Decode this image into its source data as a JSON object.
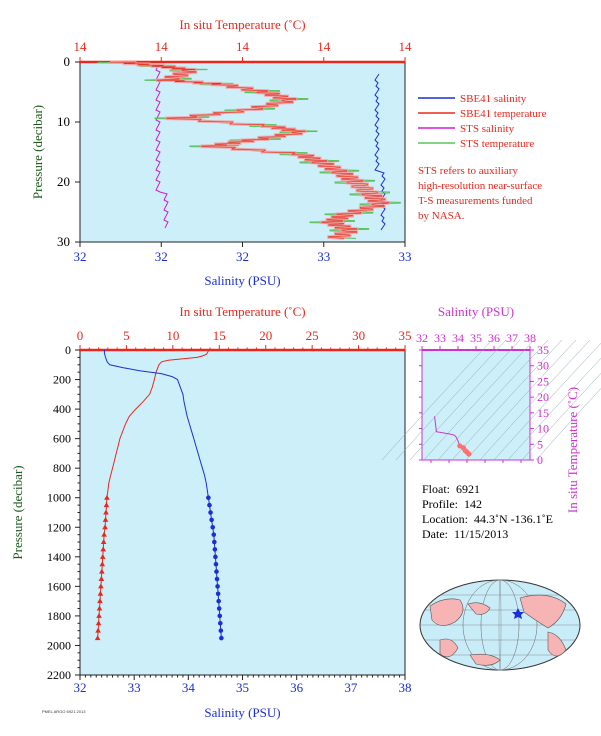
{
  "colors": {
    "plot_bg": "#cdeffa",
    "temperature": "#e8281e",
    "salinity": "#1a2fd6",
    "sts_salinity": "#d21ed2",
    "sts_temperature": "#5cc35c",
    "sbe_temp_band": "#f5a0a0",
    "ts_axis": "#cc33cc",
    "axis_label_green": "#1a5a1a"
  },
  "top_plot": {
    "title_top": "In situ Temperature (˚C)",
    "xlabel": "Salinity (PSU)",
    "ylabel": "Pressure (decibar)",
    "top_ticks": [
      "14",
      "14",
      "14",
      "14",
      "14"
    ],
    "bottom_ticks": [
      "32",
      "32",
      "32",
      "33",
      "33"
    ],
    "y_ticks": [
      "0",
      "10",
      "20",
      "30"
    ],
    "legend": [
      {
        "label": "SBE41 salinity",
        "color": "#1a2fd6"
      },
      {
        "label": "SBE41 temperature",
        "color": "#e8281e"
      },
      {
        "label": "STS salinity",
        "color": "#d21ed2"
      },
      {
        "label": "STS temperature",
        "color": "#5cc35c"
      }
    ],
    "note": [
      "STS refers to auxiliary",
      "high-resolution near-surface",
      "T-S measurements funded",
      "by NASA."
    ]
  },
  "main_plot": {
    "title_top": "In situ Temperature (˚C)",
    "xlabel": "Salinity (PSU)",
    "ylabel": "Pressure (decibar)",
    "top_ticks": [
      "0",
      "5",
      "10",
      "15",
      "20",
      "25",
      "30",
      "35"
    ],
    "bottom_ticks": [
      "32",
      "33",
      "34",
      "35",
      "36",
      "37",
      "38"
    ],
    "y_ticks": [
      "0",
      "200",
      "400",
      "600",
      "800",
      "1000",
      "1200",
      "1400",
      "1600",
      "1800",
      "2000",
      "2200"
    ]
  },
  "ts_plot": {
    "title_top": "Salinity (PSU)",
    "ylabel": "In situ Temperature (˚C)",
    "top_ticks": [
      "32",
      "33",
      "34",
      "35",
      "36",
      "37",
      "38"
    ],
    "y_ticks": [
      "0",
      "5",
      "10",
      "15",
      "20",
      "25",
      "30",
      "35"
    ]
  },
  "float_info": {
    "float_label": "Float:",
    "float_value": "6921",
    "profile_label": "Profile:",
    "profile_value": "142",
    "location_label": "Location:",
    "location_value": "44.3˚N  -136.1˚E",
    "date_label": "Date:",
    "date_value": "11/15/2013"
  },
  "footer_code": "PMEL ARGO 6921 2013",
  "chart_data": [
    {
      "type": "line",
      "name": "main_profile",
      "xlim_salinity": [
        32,
        38
      ],
      "xlim_temperature": [
        0,
        35
      ],
      "ylim": [
        0,
        2200
      ],
      "y_inverted": true,
      "series": [
        {
          "name": "SBE41 temperature",
          "axis": "temperature",
          "points": [
            [
              13.9,
              0
            ],
            [
              13.8,
              10
            ],
            [
              13.7,
              20
            ],
            [
              13.6,
              30
            ],
            [
              13.2,
              40
            ],
            [
              12.6,
              50
            ],
            [
              11.0,
              60
            ],
            [
              9.5,
              70
            ],
            [
              8.8,
              80
            ],
            [
              8.5,
              100
            ],
            [
              8.2,
              150
            ],
            [
              8.0,
              200
            ],
            [
              7.8,
              250
            ],
            [
              7.5,
              300
            ],
            [
              6.8,
              350
            ],
            [
              6.0,
              400
            ],
            [
              5.3,
              450
            ],
            [
              4.9,
              500
            ],
            [
              4.6,
              550
            ],
            [
              4.3,
              600
            ],
            [
              4.1,
              650
            ],
            [
              3.9,
              700
            ],
            [
              3.7,
              750
            ],
            [
              3.5,
              800
            ],
            [
              3.3,
              850
            ],
            [
              3.1,
              900
            ],
            [
              3.0,
              950
            ],
            [
              2.9,
              1000
            ],
            [
              2.85,
              1050
            ],
            [
              2.8,
              1100
            ],
            [
              2.75,
              1150
            ],
            [
              2.7,
              1200
            ],
            [
              2.6,
              1250
            ],
            [
              2.55,
              1300
            ],
            [
              2.5,
              1350
            ],
            [
              2.45,
              1400
            ],
            [
              2.4,
              1450
            ],
            [
              2.35,
              1500
            ],
            [
              2.3,
              1550
            ],
            [
              2.25,
              1600
            ],
            [
              2.2,
              1650
            ],
            [
              2.15,
              1700
            ],
            [
              2.1,
              1750
            ],
            [
              2.05,
              1800
            ],
            [
              2.0,
              1850
            ],
            [
              1.95,
              1900
            ],
            [
              1.9,
              1950
            ]
          ],
          "marker_from": 1000
        },
        {
          "name": "SBE41 salinity",
          "axis": "salinity",
          "points": [
            [
              32.45,
              0
            ],
            [
              32.45,
              20
            ],
            [
              32.47,
              50
            ],
            [
              32.5,
              80
            ],
            [
              32.55,
              100
            ],
            [
              32.8,
              120
            ],
            [
              33.1,
              140
            ],
            [
              33.5,
              160
            ],
            [
              33.7,
              180
            ],
            [
              33.8,
              200
            ],
            [
              33.85,
              250
            ],
            [
              33.9,
              300
            ],
            [
              33.92,
              350
            ],
            [
              33.95,
              400
            ],
            [
              33.98,
              450
            ],
            [
              34.02,
              500
            ],
            [
              34.06,
              550
            ],
            [
              34.1,
              600
            ],
            [
              34.14,
              650
            ],
            [
              34.18,
              700
            ],
            [
              34.22,
              750
            ],
            [
              34.26,
              800
            ],
            [
              34.3,
              850
            ],
            [
              34.33,
              900
            ],
            [
              34.35,
              950
            ],
            [
              34.37,
              1000
            ],
            [
              34.39,
              1050
            ],
            [
              34.41,
              1100
            ],
            [
              34.43,
              1150
            ],
            [
              34.45,
              1200
            ],
            [
              34.47,
              1250
            ],
            [
              34.48,
              1300
            ],
            [
              34.49,
              1350
            ],
            [
              34.5,
              1400
            ],
            [
              34.51,
              1450
            ],
            [
              34.52,
              1500
            ],
            [
              34.53,
              1550
            ],
            [
              34.54,
              1600
            ],
            [
              34.55,
              1650
            ],
            [
              34.56,
              1700
            ],
            [
              34.57,
              1750
            ],
            [
              34.58,
              1800
            ],
            [
              34.59,
              1850
            ],
            [
              34.6,
              1900
            ],
            [
              34.61,
              1950
            ]
          ],
          "marker_from": 1000
        }
      ]
    },
    {
      "type": "line",
      "name": "ts_diagram",
      "xlim": [
        32,
        38
      ],
      "ylim": [
        0,
        35
      ],
      "series": [
        {
          "name": "T-S",
          "points": [
            [
              32.7,
              13.9
            ],
            [
              32.8,
              9.0
            ],
            [
              33.5,
              8.3
            ],
            [
              33.8,
              7.9
            ],
            [
              33.9,
              7.3
            ],
            [
              34.0,
              6.0
            ],
            [
              34.1,
              4.5
            ],
            [
              34.3,
              3.9
            ],
            [
              34.4,
              3.0
            ],
            [
              34.5,
              2.5
            ],
            [
              34.6,
              1.9
            ]
          ]
        }
      ]
    }
  ]
}
